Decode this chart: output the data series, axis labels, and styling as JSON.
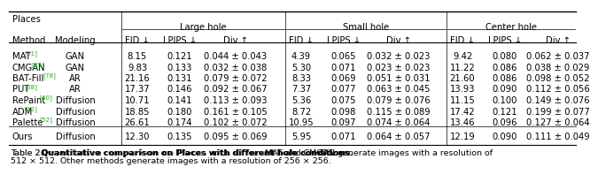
{
  "methods": [
    "MAT",
    "CMGAN",
    "BAT-Fill",
    "PUT",
    "RePaint",
    "ADM",
    "Palette",
    "Ours"
  ],
  "refs": [
    "[31]",
    "[85]",
    "[78]",
    "[38]",
    "[40]",
    "[12]",
    "[52]",
    ""
  ],
  "modeling": [
    "GAN",
    "GAN",
    "AR",
    "AR",
    "Diffusion",
    "Diffusion",
    "Diffusion",
    "Diffusion"
  ],
  "data": [
    [
      "8.15",
      "0.121",
      "0.044 ± 0.043",
      "4.39",
      "0.065",
      "0.032 ± 0.023",
      "9.42",
      "0.080",
      "0.062 ± 0.037"
    ],
    [
      "9.83",
      "0.133",
      "0.032 ± 0.038",
      "5.30",
      "0.071",
      "0.023 ± 0.023",
      "11.22",
      "0.086",
      "0.038 ± 0.029"
    ],
    [
      "21.16",
      "0.131",
      "0.079 ± 0.072",
      "8.33",
      "0.069",
      "0.051 ± 0.031",
      "21.60",
      "0.086",
      "0.098 ± 0.052"
    ],
    [
      "17.37",
      "0.146",
      "0.092 ± 0.067",
      "7.37",
      "0.077",
      "0.063 ± 0.045",
      "13.93",
      "0.090",
      "0.112 ± 0.056"
    ],
    [
      "10.71",
      "0.141",
      "0.113 ± 0.093",
      "5.36",
      "0.075",
      "0.079 ± 0.076",
      "11.15",
      "0.100",
      "0.149 ± 0.076"
    ],
    [
      "18.85",
      "0.180",
      "0.161 ± 0.105",
      "8.72",
      "0.098",
      "0.115 ± 0.089",
      "17.42",
      "0.121",
      "0.199 ± 0.077"
    ],
    [
      "26.61",
      "0.174",
      "0.102 ± 0.072",
      "10.95",
      "0.097",
      "0.074 ± 0.064",
      "13.46",
      "0.096",
      "0.127 ± 0.064"
    ],
    [
      "12.30",
      "0.135",
      "0.095 ± 0.069",
      "5.95",
      "0.071",
      "0.064 ± 0.057",
      "12.19",
      "0.090",
      "0.111 ± 0.049"
    ]
  ],
  "caption_bold": "Table 2. ",
  "caption_bold2": "Quantitative comparison on Places with different hole conditions.",
  "caption_normal": " MAT and CMGAN generate images with a resolution of",
  "caption_line2": "512 × 512. Other methods generate images with a resolution of 256 × 256.",
  "bg_color": "#ffffff",
  "ref_color": "#22aa22",
  "font_size": 7.2,
  "caption_font_size": 6.8
}
